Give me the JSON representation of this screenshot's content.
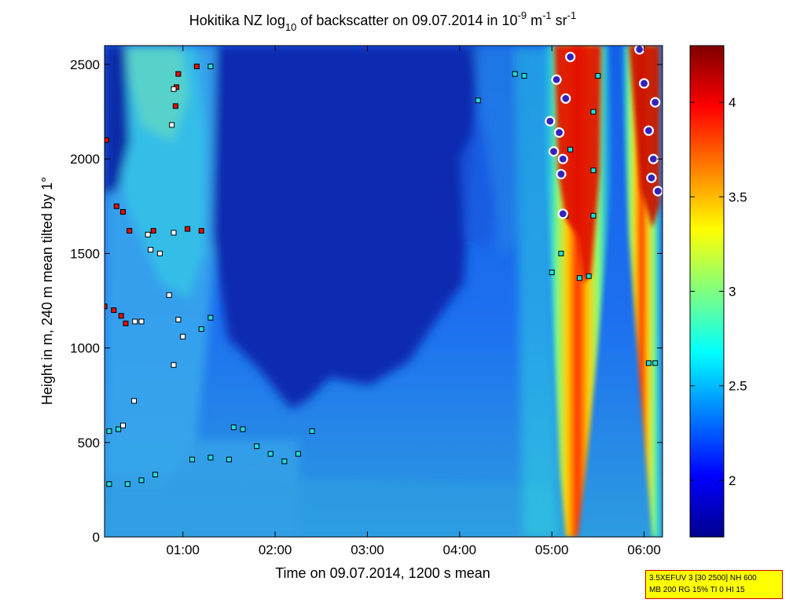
{
  "chart_data": {
    "type": "heatmap",
    "title": {
      "prefix": "Hokitika NZ log",
      "log_base": "10",
      "middle": " of backscatter on 09.07.2014 in 10",
      "exp1": "-9",
      "unit1": " m",
      "exp2": "-1",
      "unit2": " sr",
      "exp3": "-1"
    },
    "xlabel": "Time on 09.07.2014, 1200 s mean",
    "ylabel": "Height in m, 240 m mean tilted by 1°",
    "x_ticks": [
      {
        "label": "01:00",
        "hours": 1
      },
      {
        "label": "02:00",
        "hours": 2
      },
      {
        "label": "03:00",
        "hours": 3
      },
      {
        "label": "04:00",
        "hours": 4
      },
      {
        "label": "05:00",
        "hours": 5
      },
      {
        "label": "06:00",
        "hours": 6
      }
    ],
    "xlim_hours": [
      0.15,
      6.2
    ],
    "y_ticks": [
      0,
      500,
      1000,
      1500,
      2000,
      2500
    ],
    "ylim": [
      0,
      2600
    ],
    "colorbar": {
      "range": [
        1.7,
        4.3
      ],
      "ticks": [
        2,
        2.5,
        3,
        3.5,
        4
      ],
      "tick_labels": [
        "2",
        "2.5",
        "3",
        "3.5",
        "4"
      ],
      "colormap": "jet"
    },
    "markers": [
      {
        "class": "cloud-high",
        "color": "#dd1100",
        "points": [
          {
            "t": 0.17,
            "h": 2100
          },
          {
            "t": 0.28,
            "h": 1750
          },
          {
            "t": 0.35,
            "h": 1720
          },
          {
            "t": 0.42,
            "h": 1620
          },
          {
            "t": 0.15,
            "h": 1220
          },
          {
            "t": 0.25,
            "h": 1200
          },
          {
            "t": 0.33,
            "h": 1170
          },
          {
            "t": 0.38,
            "h": 1130
          },
          {
            "t": 0.95,
            "h": 2450
          },
          {
            "t": 1.15,
            "h": 2490
          },
          {
            "t": 1.05,
            "h": 1630
          },
          {
            "t": 1.2,
            "h": 1620
          },
          {
            "t": 0.92,
            "h": 2280
          },
          {
            "t": 0.93,
            "h": 2380
          },
          {
            "t": 0.68,
            "h": 1620
          }
        ]
      },
      {
        "class": "cloud-mid",
        "color": "#ffffff",
        "points": [
          {
            "t": 0.65,
            "h": 1520
          },
          {
            "t": 0.75,
            "h": 1500
          },
          {
            "t": 0.9,
            "h": 1610
          },
          {
            "t": 0.62,
            "h": 1600
          },
          {
            "t": 0.85,
            "h": 1280
          },
          {
            "t": 0.55,
            "h": 1140
          },
          {
            "t": 0.95,
            "h": 1150
          },
          {
            "t": 1.0,
            "h": 1060
          },
          {
            "t": 0.48,
            "h": 1140
          },
          {
            "t": 0.88,
            "h": 2180
          },
          {
            "t": 0.9,
            "h": 2370
          },
          {
            "t": 0.9,
            "h": 910
          },
          {
            "t": 0.47,
            "h": 720
          },
          {
            "t": 0.35,
            "h": 590
          }
        ]
      },
      {
        "class": "cloud-low",
        "color": "#22dddd",
        "points": [
          {
            "t": 0.2,
            "h": 560
          },
          {
            "t": 0.3,
            "h": 570
          },
          {
            "t": 0.2,
            "h": 280
          },
          {
            "t": 0.4,
            "h": 280
          },
          {
            "t": 0.55,
            "h": 300
          },
          {
            "t": 0.7,
            "h": 330
          },
          {
            "t": 1.1,
            "h": 410
          },
          {
            "t": 1.3,
            "h": 420
          },
          {
            "t": 1.5,
            "h": 410
          },
          {
            "t": 1.55,
            "h": 580
          },
          {
            "t": 1.65,
            "h": 570
          },
          {
            "t": 1.8,
            "h": 480
          },
          {
            "t": 1.95,
            "h": 440
          },
          {
            "t": 2.1,
            "h": 400
          },
          {
            "t": 2.25,
            "h": 440
          },
          {
            "t": 2.4,
            "h": 560
          },
          {
            "t": 1.2,
            "h": 1100
          },
          {
            "t": 1.3,
            "h": 1160
          },
          {
            "t": 1.3,
            "h": 2490
          },
          {
            "t": 4.2,
            "h": 2310
          },
          {
            "t": 4.6,
            "h": 2450
          },
          {
            "t": 4.7,
            "h": 2440
          },
          {
            "t": 5.0,
            "h": 1400
          },
          {
            "t": 5.1,
            "h": 1500
          },
          {
            "t": 5.3,
            "h": 1370
          },
          {
            "t": 5.4,
            "h": 1380
          },
          {
            "t": 5.45,
            "h": 1940
          },
          {
            "t": 5.5,
            "h": 2440
          },
          {
            "t": 5.15,
            "h": 1700
          },
          {
            "t": 5.45,
            "h": 1700
          },
          {
            "t": 6.05,
            "h": 920
          },
          {
            "t": 6.12,
            "h": 920
          },
          {
            "t": 5.2,
            "h": 2050
          },
          {
            "t": 5.45,
            "h": 2250
          }
        ]
      },
      {
        "class": "precipitation",
        "color": "#3322bb",
        "points": [
          {
            "t": 4.98,
            "h": 2200
          },
          {
            "t": 5.05,
            "h": 2420
          },
          {
            "t": 5.08,
            "h": 2140
          },
          {
            "t": 5.12,
            "h": 2000
          },
          {
            "t": 5.1,
            "h": 1920
          },
          {
            "t": 5.12,
            "h": 1710
          },
          {
            "t": 5.2,
            "h": 2540
          },
          {
            "t": 5.15,
            "h": 2320
          },
          {
            "t": 5.02,
            "h": 2040
          },
          {
            "t": 5.95,
            "h": 2580
          },
          {
            "t": 6.0,
            "h": 2400
          },
          {
            "t": 6.05,
            "h": 2150
          },
          {
            "t": 6.1,
            "h": 2000
          },
          {
            "t": 6.15,
            "h": 1830
          },
          {
            "t": 6.12,
            "h": 2300
          },
          {
            "t": 6.08,
            "h": 1900
          }
        ]
      }
    ]
  },
  "info_box": {
    "line1": "3.5XEFUV 3 [30 2500] NH 600",
    "line2": "MB 200 RG 15% TI 0 HI 15"
  }
}
